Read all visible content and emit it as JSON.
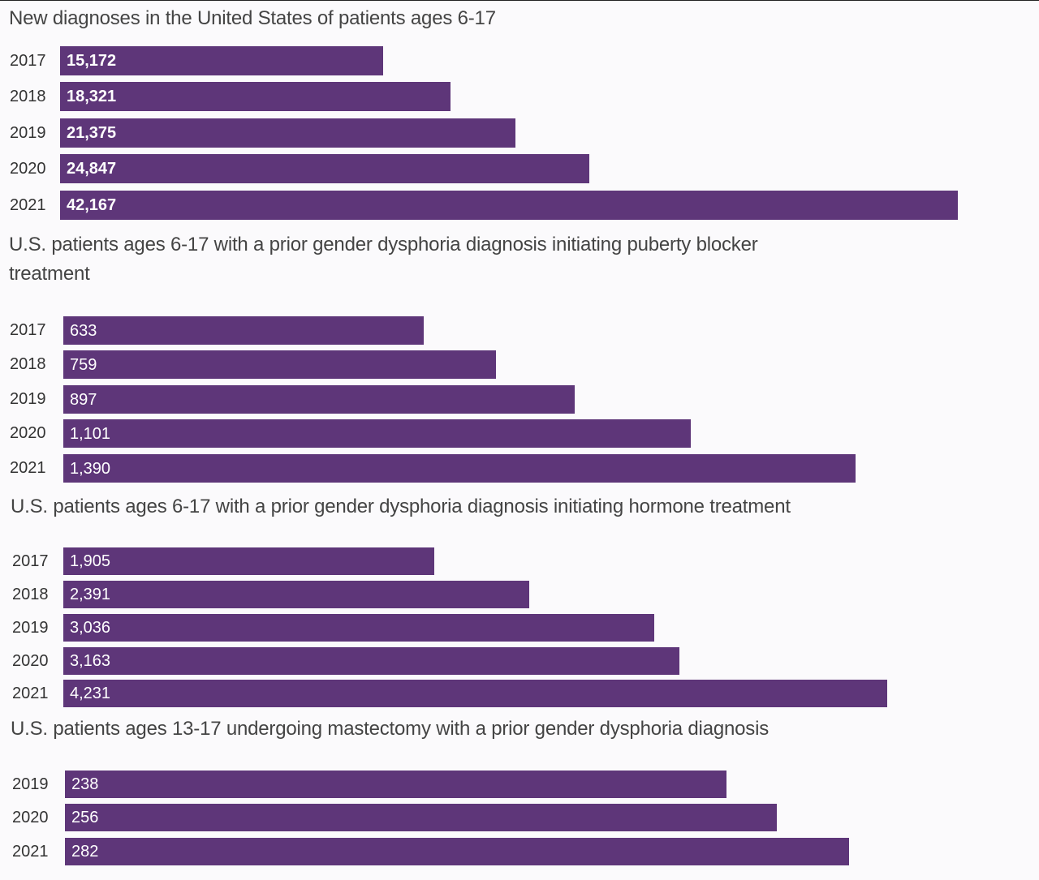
{
  "chart_data": [
    {
      "type": "bar",
      "orientation": "horizontal",
      "title": "New diagnoses in the United States of patients ages 6-17",
      "categories": [
        "2017",
        "2018",
        "2019",
        "2020",
        "2021"
      ],
      "values": [
        15172,
        18321,
        21375,
        24847,
        42167
      ],
      "value_labels": [
        "15,172",
        "18,321",
        "21,375",
        "24,847",
        "42,167"
      ],
      "color": "#5e3679",
      "bold_labels": true
    },
    {
      "type": "bar",
      "orientation": "horizontal",
      "title": "U.S. patients ages 6-17 with a prior gender dysphoria diagnosis initiating puberty blocker treatment",
      "categories": [
        "2017",
        "2018",
        "2019",
        "2020",
        "2021"
      ],
      "values": [
        633,
        759,
        897,
        1101,
        1390
      ],
      "value_labels": [
        "633",
        "759",
        "897",
        "1,101",
        "1,390"
      ],
      "color": "#5e3679",
      "bold_labels": false
    },
    {
      "type": "bar",
      "orientation": "horizontal",
      "title": "U.S. patients ages 6-17 with a prior gender dysphoria diagnosis initiating hormone treatment",
      "categories": [
        "2017",
        "2018",
        "2019",
        "2020",
        "2021"
      ],
      "values": [
        1905,
        2391,
        3036,
        3163,
        4231
      ],
      "value_labels": [
        "1,905",
        "2,391",
        "3,036",
        "3,163",
        "4,231"
      ],
      "color": "#5e3679",
      "bold_labels": false
    },
    {
      "type": "bar",
      "orientation": "horizontal",
      "title": "U.S. patients ages 13-17 undergoing mastectomy with a prior gender dysphoria diagnosis",
      "categories": [
        "2019",
        "2020",
        "2021"
      ],
      "values": [
        238,
        256,
        282
      ],
      "value_labels": [
        "238",
        "256",
        "282"
      ],
      "color": "#5e3679",
      "bold_labels": false
    }
  ]
}
